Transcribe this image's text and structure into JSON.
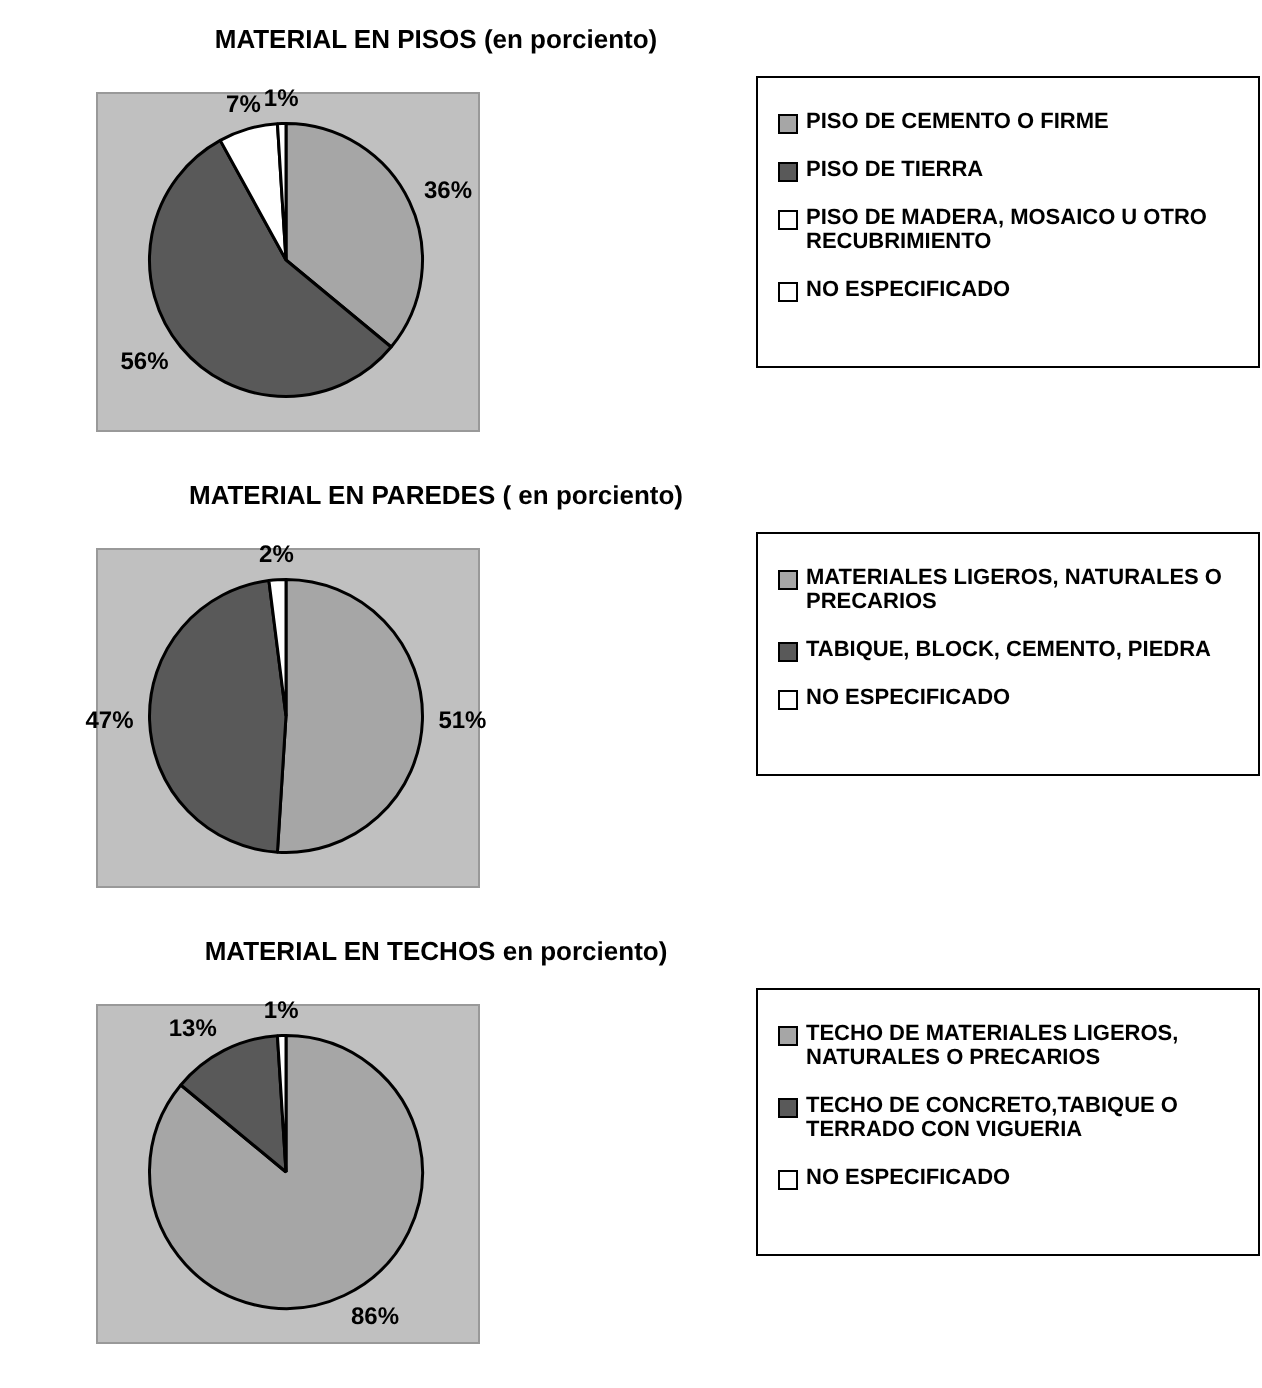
{
  "chart_data": [
    {
      "type": "pie",
      "title": "MATERIAL EN PISOS (en porciento)",
      "categories": [
        "PISO DE CEMENTO O FIRME",
        "PISO DE TIERRA",
        "PISO DE MADERA, MOSAICO U OTRO RECUBRIMIENTO",
        "NO ESPECIFICADO"
      ],
      "values": [
        36,
        56,
        7,
        1
      ],
      "colors": [
        "#a6a6a6",
        "#595959",
        "#ffffff",
        "#ffffff"
      ],
      "value_labels": [
        "36%",
        "56%",
        "7%",
        "1%"
      ],
      "legend": "right"
    },
    {
      "type": "pie",
      "title": "MATERIAL EN PAREDES ( en porciento)",
      "categories": [
        "MATERIALES LIGEROS, NATURALES O PRECARIOS",
        "TABIQUE, BLOCK, CEMENTO, PIEDRA",
        "NO ESPECIFICADO"
      ],
      "values": [
        51,
        47,
        2
      ],
      "colors": [
        "#a6a6a6",
        "#595959",
        "#ffffff"
      ],
      "value_labels": [
        "51%",
        "47%",
        "2%"
      ],
      "legend": "right"
    },
    {
      "type": "pie",
      "title": "MATERIAL EN TECHOS en porciento)",
      "categories": [
        "TECHO DE MATERIALES LIGEROS, NATURALES O PRECARIOS",
        "TECHO DE CONCRETO,TABIQUE O TERRADO CON VIGUERIA",
        "NO ESPECIFICADO"
      ],
      "values": [
        86,
        13,
        1
      ],
      "colors": [
        "#a6a6a6",
        "#595959",
        "#ffffff"
      ],
      "value_labels": [
        "86%",
        "13%",
        "1%"
      ],
      "legend": "right"
    }
  ]
}
